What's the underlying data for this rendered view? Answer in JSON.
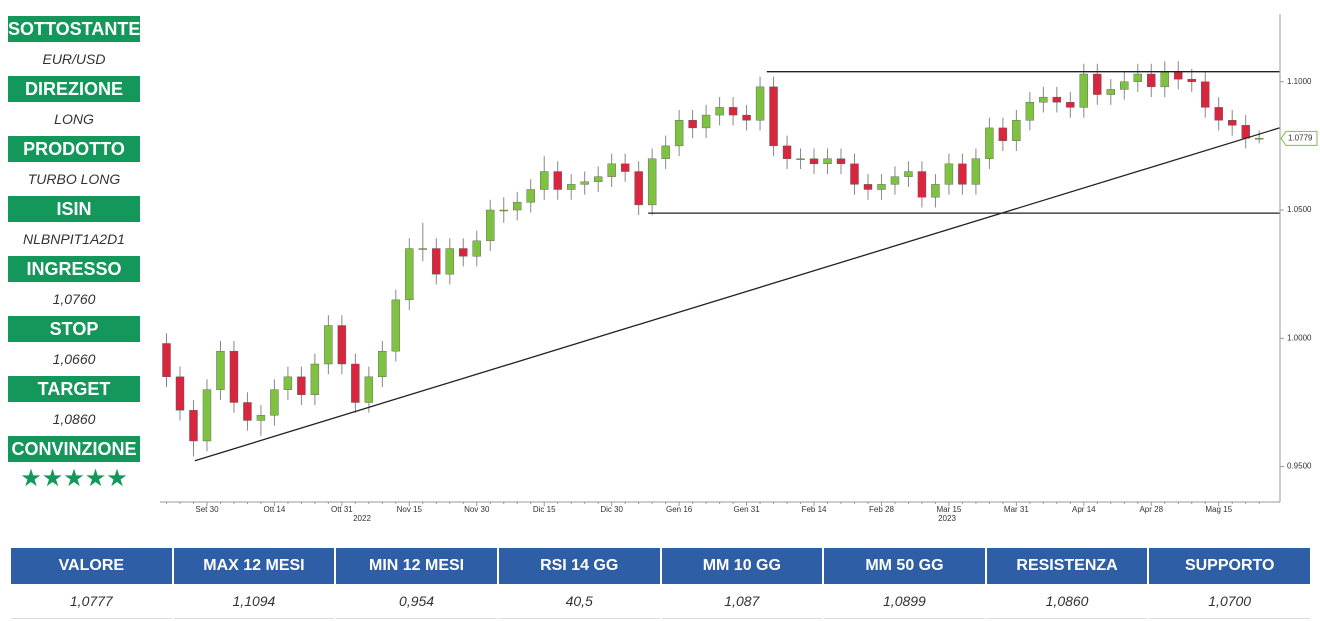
{
  "sidebar": [
    {
      "label": "SOTTOSTANTE",
      "value": "EUR/USD"
    },
    {
      "label": "DIREZIONE",
      "value": "LONG"
    },
    {
      "label": "PRODOTTO",
      "value": "TURBO LONG"
    },
    {
      "label": "ISIN",
      "value": "NLBNPIT1A2D1"
    },
    {
      "label": "INGRESSO",
      "value": "1,0760"
    },
    {
      "label": "STOP",
      "value": "1,0660"
    },
    {
      "label": "TARGET",
      "value": "1,0860"
    },
    {
      "label": "CONVINZIONE",
      "value": "★★★★★"
    }
  ],
  "chart_data": {
    "type": "candlestick",
    "categories": [
      null,
      null,
      null,
      "Set 30",
      null,
      null,
      null,
      null,
      "Ott 14",
      null,
      null,
      null,
      null,
      "Ott 31",
      null,
      null,
      null,
      null,
      "Nov 15",
      null,
      null,
      null,
      null,
      "Nov 30",
      null,
      null,
      null,
      null,
      "Dic 15",
      null,
      null,
      null,
      null,
      "Dic 30",
      null,
      null,
      null,
      null,
      "Gen 16",
      null,
      null,
      null,
      null,
      "Gen 31",
      null,
      null,
      null,
      null,
      "Feb 14",
      null,
      null,
      null,
      null,
      "Feb 28",
      null,
      null,
      null,
      null,
      "Mar 15",
      null,
      null,
      null,
      null,
      "Mar 31",
      null,
      null,
      null,
      null,
      "Apr 14",
      null,
      null,
      null,
      null,
      "Apr 28",
      null,
      null,
      null,
      null,
      "Mag 15",
      null,
      null,
      null
    ],
    "year_labels": [
      "2022",
      "2023"
    ],
    "series": [
      {
        "up_color": "#7fc241",
        "down_color": "#d9263f",
        "open": [
          0.998,
          0.985,
          0.972,
          0.96,
          0.98,
          0.995,
          0.975,
          0.968,
          0.97,
          0.98,
          0.985,
          0.978,
          0.99,
          1.005,
          0.99,
          0.975,
          0.985,
          0.995,
          1.015,
          1.035,
          1.035,
          1.025,
          1.035,
          1.032,
          1.038,
          1.05,
          1.05,
          1.053,
          1.058,
          1.065,
          1.058,
          1.06,
          1.061,
          1.063,
          1.068,
          1.065,
          1.052,
          1.07,
          1.075,
          1.085,
          1.082,
          1.087,
          1.09,
          1.087,
          1.085,
          1.098,
          1.075,
          1.07,
          1.07,
          1.068,
          1.07,
          1.068,
          1.06,
          1.058,
          1.06,
          1.063,
          1.065,
          1.055,
          1.06,
          1.068,
          1.06,
          1.07,
          1.082,
          1.077,
          1.085,
          1.092,
          1.094,
          1.092,
          1.09,
          1.103,
          1.095,
          1.097,
          1.1,
          1.103,
          1.098,
          1.104,
          1.101,
          1.1,
          1.09,
          1.085,
          1.083,
          1.078
        ],
        "high": [
          1.002,
          0.989,
          0.976,
          0.984,
          0.999,
          0.999,
          0.979,
          0.974,
          0.984,
          0.989,
          0.989,
          0.994,
          1.009,
          1.009,
          0.994,
          0.989,
          0.999,
          1.019,
          1.039,
          1.045,
          1.039,
          1.039,
          1.039,
          1.042,
          1.054,
          1.055,
          1.057,
          1.062,
          1.071,
          1.069,
          1.064,
          1.065,
          1.067,
          1.072,
          1.072,
          1.069,
          1.074,
          1.079,
          1.089,
          1.089,
          1.091,
          1.094,
          1.094,
          1.091,
          1.102,
          1.102,
          1.079,
          1.074,
          1.074,
          1.074,
          1.074,
          1.072,
          1.064,
          1.064,
          1.067,
          1.069,
          1.069,
          1.064,
          1.072,
          1.072,
          1.074,
          1.086,
          1.086,
          1.089,
          1.096,
          1.098,
          1.098,
          1.096,
          1.107,
          1.107,
          1.101,
          1.104,
          1.107,
          1.107,
          1.108,
          1.108,
          1.105,
          1.104,
          1.094,
          1.089,
          1.087,
          1.081
        ],
        "low": [
          0.981,
          0.968,
          0.954,
          0.956,
          0.976,
          0.971,
          0.964,
          0.962,
          0.966,
          0.976,
          0.974,
          0.974,
          0.986,
          0.986,
          0.971,
          0.971,
          0.981,
          0.991,
          1.011,
          1.03,
          1.021,
          1.021,
          1.028,
          1.028,
          1.034,
          1.045,
          1.046,
          1.049,
          1.054,
          1.054,
          1.054,
          1.056,
          1.057,
          1.059,
          1.061,
          1.048,
          1.048,
          1.066,
          1.071,
          1.078,
          1.078,
          1.083,
          1.083,
          1.081,
          1.081,
          1.071,
          1.066,
          1.066,
          1.064,
          1.064,
          1.064,
          1.056,
          1.054,
          1.054,
          1.056,
          1.059,
          1.051,
          1.051,
          1.056,
          1.056,
          1.056,
          1.066,
          1.073,
          1.073,
          1.081,
          1.088,
          1.088,
          1.086,
          1.086,
          1.091,
          1.091,
          1.093,
          1.096,
          1.094,
          1.094,
          1.097,
          1.096,
          1.086,
          1.081,
          1.079,
          1.074,
          1.076
        ],
        "close": [
          0.985,
          0.972,
          0.96,
          0.98,
          0.995,
          0.975,
          0.968,
          0.97,
          0.98,
          0.985,
          0.978,
          0.99,
          1.005,
          0.99,
          0.975,
          0.985,
          0.995,
          1.015,
          1.035,
          1.035,
          1.025,
          1.035,
          1.032,
          1.038,
          1.05,
          1.05,
          1.053,
          1.058,
          1.065,
          1.058,
          1.06,
          1.061,
          1.063,
          1.068,
          1.065,
          1.052,
          1.07,
          1.075,
          1.085,
          1.082,
          1.087,
          1.09,
          1.087,
          1.085,
          1.098,
          1.075,
          1.07,
          1.07,
          1.068,
          1.07,
          1.068,
          1.06,
          1.058,
          1.06,
          1.063,
          1.065,
          1.055,
          1.06,
          1.068,
          1.06,
          1.07,
          1.082,
          1.077,
          1.085,
          1.092,
          1.094,
          1.092,
          1.09,
          1.103,
          1.095,
          1.097,
          1.1,
          1.103,
          1.098,
          1.104,
          1.101,
          1.1,
          1.09,
          1.085,
          1.083,
          1.078,
          1.078
        ]
      }
    ],
    "ylim": [
      0.937,
      1.126
    ],
    "yticks": [
      {
        "value": 0.95,
        "label": "0.9500"
      },
      {
        "value": 1.0,
        "label": "1.0000"
      },
      {
        "value": 1.05,
        "label": "1.0500"
      },
      {
        "value": 1.1,
        "label": "1.1000"
      }
    ],
    "lines": [
      {
        "x": [
          44.5,
          82.5
        ],
        "y": [
          1.1039,
          1.1039
        ]
      },
      {
        "x": [
          35.7,
          82.5
        ],
        "y": [
          1.0488,
          1.0488
        ]
      },
      {
        "x": [
          2.1,
          82.5
        ],
        "y": [
          0.9523,
          1.082
        ]
      }
    ],
    "last_price": {
      "value": 1.0779,
      "label": "1.0779",
      "color": "#7fc241"
    }
  },
  "table": {
    "headers": [
      "VALORE",
      "MAX 12 MESI",
      "MIN 12 MESI",
      "RSI 14 GG",
      "MM 10 GG",
      "MM 50 GG",
      "RESISTENZA",
      "SUPPORTO"
    ],
    "rows": [
      [
        "1,0777",
        "1,1094",
        "0,954",
        "40,5",
        "1,087",
        "1,0899",
        "1,0860",
        "1,0700"
      ]
    ]
  }
}
